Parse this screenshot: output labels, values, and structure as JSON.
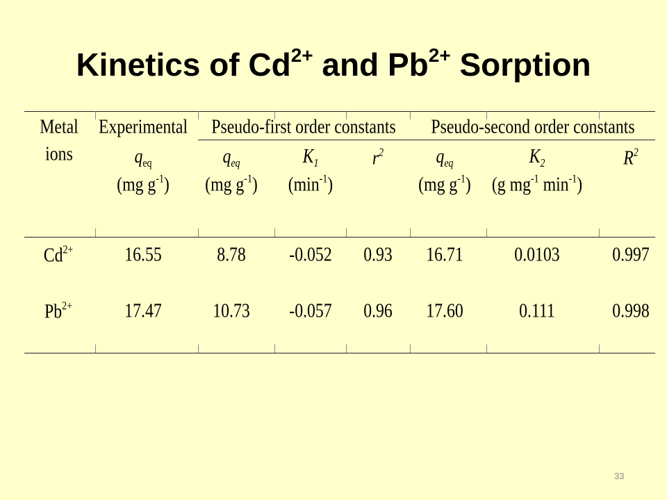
{
  "title": {
    "text1": "Kinetics of Cd",
    "sup1": "2+",
    "text2": "and Pb",
    "sup2": "2+",
    "text3": "Sorption"
  },
  "table": {
    "header": {
      "metal": {
        "line1": "Metal",
        "line2": "ions"
      },
      "experimental": {
        "label": "Experimental",
        "symbol": "q",
        "subscript": "eq",
        "unit": "(mg g",
        "unit_sup": "-1",
        "unit_end": ")"
      },
      "groups": [
        "Pseudo-first order constants",
        "Pseudo-second order constants"
      ],
      "columns": [
        {
          "symbol": "q",
          "subscript": "eq",
          "unit": "(mg g",
          "unit_sup": "-1",
          "unit_end": ")"
        },
        {
          "symbol": "K",
          "subscript": "1",
          "unit": "(min",
          "unit_sup": "-1",
          "unit_end": ")"
        },
        {
          "symbol": "r",
          "sup": "2"
        },
        {
          "symbol": "q",
          "subscript": "eq",
          "unit": "(mg g",
          "unit_sup": "-1",
          "unit_end": ")"
        },
        {
          "symbol": "K",
          "subscript": "2",
          "unit": "(g mg",
          "unit_sup": "-1",
          "unit_mid": "min",
          "unit_sup2": "-1",
          "unit_end": ")"
        },
        {
          "symbol": "R",
          "sup": "2"
        }
      ]
    },
    "rows": [
      {
        "ion": "Cd",
        "charge": "2+",
        "values": [
          "16.55",
          "8.78",
          "-0.052",
          "0.93",
          "16.71",
          "0.0103",
          "0.997"
        ]
      },
      {
        "ion": "Pb",
        "charge": "2+",
        "values": [
          "17.47",
          "10.73",
          "-0.057",
          "0.96",
          "17.60",
          "0.111",
          "0.998"
        ]
      }
    ]
  },
  "page_number": "33"
}
